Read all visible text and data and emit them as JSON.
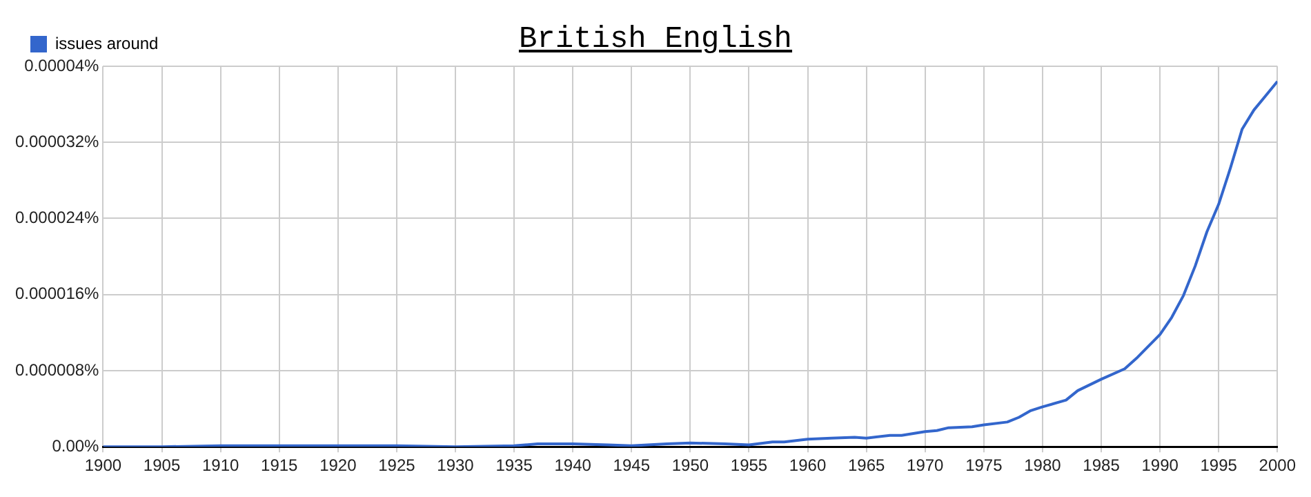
{
  "chart_data": {
    "type": "line",
    "title": "British English",
    "legend": "top left",
    "grid": true,
    "marker": "none",
    "line_style": "solid",
    "x": [
      1900,
      1905,
      1910,
      1915,
      1920,
      1925,
      1930,
      1935,
      1937,
      1940,
      1943,
      1945,
      1948,
      1950,
      1953,
      1955,
      1957,
      1958,
      1960,
      1962,
      1964,
      1965,
      1967,
      1968,
      1970,
      1971,
      1972,
      1974,
      1975,
      1977,
      1978,
      1979,
      1980,
      1982,
      1983,
      1985,
      1987,
      1988,
      1990,
      1991,
      1992,
      1993,
      1994,
      1995,
      1996,
      1997,
      1998,
      1999,
      2000
    ],
    "series": [
      {
        "name": "issues around",
        "color": "#3366cc",
        "values": [
          0,
          0,
          1e-07,
          1e-07,
          1e-07,
          1e-07,
          0,
          1e-07,
          3e-07,
          3e-07,
          2e-07,
          1e-07,
          3e-07,
          4e-07,
          3e-07,
          2e-07,
          5e-07,
          5e-07,
          8e-07,
          9e-07,
          1e-06,
          9e-07,
          1.2e-06,
          1.2e-06,
          1.6e-06,
          1.7e-06,
          2e-06,
          2.1e-06,
          2.3e-06,
          2.6e-06,
          3.1e-06,
          3.8e-06,
          4.2e-06,
          4.9e-06,
          5.9e-06,
          7.1e-06,
          8.2e-06,
          9.3e-06,
          1.18e-05,
          1.36e-05,
          1.59e-05,
          1.9e-05,
          2.26e-05,
          2.55e-05,
          2.93e-05,
          3.34e-05,
          3.54e-05,
          3.69e-05,
          3.84e-05
        ]
      }
    ],
    "xlim": [
      1900,
      2000
    ],
    "xticks": [
      1900,
      1905,
      1910,
      1915,
      1920,
      1925,
      1930,
      1935,
      1940,
      1945,
      1950,
      1955,
      1960,
      1965,
      1970,
      1975,
      1980,
      1985,
      1990,
      1995,
      2000
    ],
    "ylim": [
      0,
      4e-05
    ],
    "yticks": [
      {
        "value": 0,
        "label": "0.00%"
      },
      {
        "value": 8e-06,
        "label": "0.000008%"
      },
      {
        "value": 1.6e-05,
        "label": "0.000016%"
      },
      {
        "value": 2.4e-05,
        "label": "0.000024%"
      },
      {
        "value": 3.2e-05,
        "label": "0.000032%"
      },
      {
        "value": 4e-05,
        "label": "0.00004%"
      }
    ]
  }
}
